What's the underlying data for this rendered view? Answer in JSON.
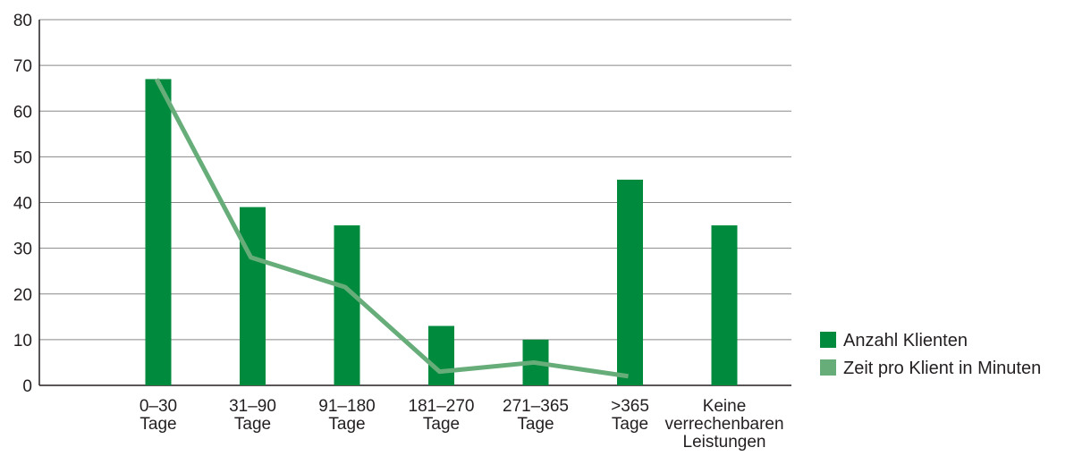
{
  "chart_data": {
    "type": "bar",
    "categories": [
      [
        "0–30",
        "Tage"
      ],
      [
        "31–90",
        "Tage"
      ],
      [
        "91–180",
        "Tage"
      ],
      [
        "181–270",
        "Tage"
      ],
      [
        "271–365",
        "Tage"
      ],
      [
        ">365",
        "Tage"
      ],
      [
        "Keine",
        "verrechenbaren",
        "Leistungen"
      ]
    ],
    "series": [
      {
        "name": "Anzahl Klienten",
        "kind": "bar",
        "color": "#008a3e",
        "values": [
          67,
          39,
          35,
          13,
          10,
          45,
          35
        ]
      },
      {
        "name": "Zeit pro Klient in Minuten",
        "kind": "line",
        "color": "#67ad7a",
        "values": [
          67,
          28,
          21.5,
          3,
          5,
          2,
          null
        ]
      }
    ],
    "yticks": [
      0,
      10,
      20,
      30,
      40,
      50,
      60,
      70,
      80
    ],
    "ylim": [
      0,
      80
    ],
    "grid": true,
    "legend": "right"
  }
}
